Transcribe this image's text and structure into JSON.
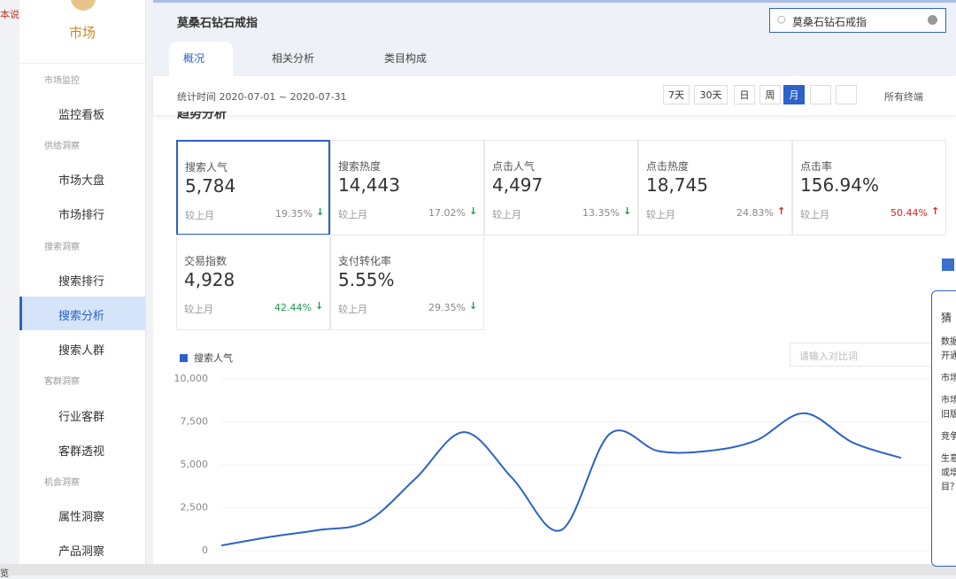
{
  "left_note": "本说明",
  "bottom_note": "览",
  "sidebar": {
    "logo_text": "市场",
    "groups": [
      {
        "title": "市场监控",
        "items": [
          "监控看板"
        ]
      },
      {
        "title": "供给洞察",
        "items": [
          "市场大盘",
          "市场排行"
        ]
      },
      {
        "title": "搜索洞察",
        "items": [
          "搜索排行",
          "搜索分析",
          "搜索人群"
        ]
      },
      {
        "title": "客群洞察",
        "items": [
          "行业客群",
          "客群透视"
        ]
      },
      {
        "title": "机会洞察",
        "items": [
          "属性洞察",
          "产品洞察"
        ]
      }
    ],
    "active_group": 2,
    "active_item": 1
  },
  "header": {
    "title": "莫桑石钻石戒指",
    "search": "莫桑石钻石戒指"
  },
  "tabs": {
    "items": [
      "概况",
      "相关分析",
      "类目构成"
    ],
    "active": 0
  },
  "toolbar": {
    "period": "统计时间 2020-07-01 ~ 2020-07-31",
    "buttons": [
      "7天",
      "30天",
      "日",
      "周",
      "月"
    ],
    "active": 4,
    "terminal": "所有终端"
  },
  "section_title": "趋势分析",
  "metrics": [
    {
      "name": "搜索人气",
      "value": "5,784",
      "compare": "较上月",
      "change": "19.35%",
      "direction": "down"
    },
    {
      "name": "搜索热度",
      "value": "14,443",
      "compare": "较上月",
      "change": "17.02%",
      "direction": "down"
    },
    {
      "name": "点击人气",
      "value": "4,497",
      "compare": "较上月",
      "change": "13.35%",
      "direction": "down"
    },
    {
      "name": "点击热度",
      "value": "18,745",
      "compare": "较上月",
      "change": "24.83%",
      "direction": "up"
    },
    {
      "name": "点击率",
      "value": "156.94%",
      "compare": "较上月",
      "change": "50.44%",
      "direction": "up"
    },
    {
      "name": "交易指数",
      "value": "4,928",
      "compare": "较上月",
      "change": "42.44%",
      "direction": "down"
    },
    {
      "name": "支付转化率",
      "value": "5.55%",
      "compare": "较上月",
      "change": "29.35%",
      "direction": "down"
    }
  ],
  "compare_placeholder": "请输入对比词",
  "chart_data": {
    "type": "line",
    "series": [
      {
        "name": "搜索人气",
        "color": "#2c62c9",
        "values": [
          300,
          800,
          1200,
          1700,
          4200,
          6900,
          4200,
          1200,
          6800,
          5800,
          5800,
          6400,
          8000,
          6300,
          5400
        ]
      }
    ],
    "ylim": [
      0,
      10000
    ],
    "yticks": [
      0,
      {
        "value": 2500,
        "label": "2,500"
      },
      {
        "value": 5000,
        "label": "5,000"
      },
      {
        "value": 7500,
        "label": "7,500"
      },
      {
        "value": 10000,
        "label": "10,000"
      }
    ],
    "grid": true
  },
  "side_widget": {
    "lines": [
      "猜",
      "数据",
      "开通",
      "市场",
      "市场",
      "旧版",
      "竞争",
      "生意",
      "或增",
      "目？"
    ]
  }
}
